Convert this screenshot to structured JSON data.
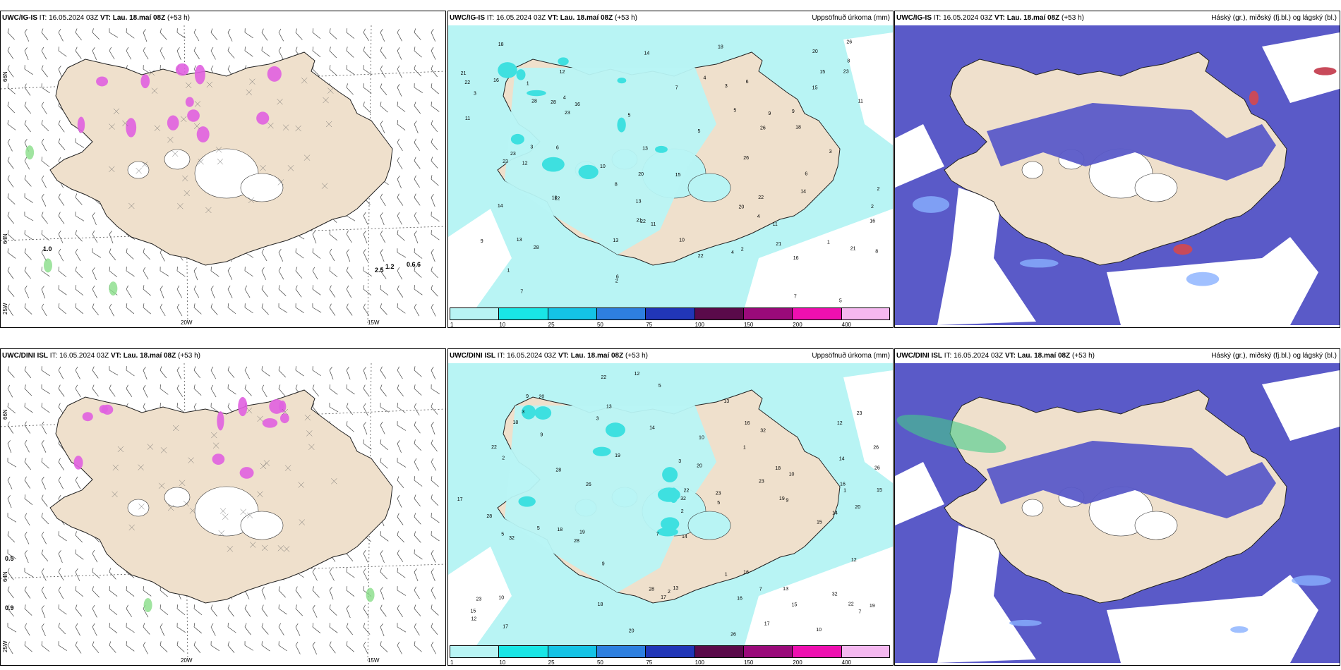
{
  "panels": [
    {
      "id": "p1",
      "model": "UWC/IG-IS",
      "it_label": "IT:",
      "it": "16.05.2024 03Z",
      "vt_label": "VT:",
      "vt": "Lau. 18.maí 08Z",
      "lead": "(+53 h)",
      "right_title": "",
      "kind": "wind"
    },
    {
      "id": "p2",
      "model": "UWC/IG-IS",
      "it_label": "IT:",
      "it": "16.05.2024 03Z",
      "vt_label": "VT:",
      "vt": "Lau. 18.maí 08Z",
      "lead": "(+53 h)",
      "right_title": "Uppsöfnuð úrkoma (mm)",
      "kind": "precip"
    },
    {
      "id": "p3",
      "model": "UWC/IG-IS",
      "it_label": "IT:",
      "it": "16.05.2024 03Z",
      "vt_label": "VT:",
      "vt": "Lau. 18.maí 08Z",
      "lead": "(+53 h)",
      "right_title": "Háský (gr.), miðský (fj.bl.) og lágský (bl.)",
      "kind": "cloud"
    },
    {
      "id": "p4",
      "model": "UWC/DINI ISL",
      "it_label": "IT:",
      "it": "16.05.2024 03Z",
      "vt_label": "VT:",
      "vt": "Lau. 18.maí 08Z",
      "lead": "(+53 h)",
      "right_title": "",
      "kind": "wind"
    },
    {
      "id": "p5",
      "model": "UWC/DINI ISL",
      "it_label": "IT:",
      "it": "16.05.2024 03Z",
      "vt_label": "VT:",
      "vt": "Lau. 18.maí 08Z",
      "lead": "(+53 h)",
      "right_title": "Uppsöfnuð úrkoma (mm)",
      "kind": "precip"
    },
    {
      "id": "p6",
      "model": "UWC/DINI ISL",
      "it_label": "IT:",
      "it": "16.05.2024 03Z",
      "vt_label": "VT:",
      "vt": "Lau. 18.maí 08Z",
      "lead": "(+53 h)",
      "right_title": "Háský (gr.), miðský (fj.bl.) og lágský (bl.)",
      "kind": "cloud"
    }
  ],
  "axis_labels": {
    "lon_20w": "20W",
    "lon_15w": "15W",
    "lon_25w": "25W",
    "lat_66n": "66N",
    "lat_64n": "64N"
  },
  "colorbar": {
    "ticks": [
      "1",
      "10",
      "25",
      "50",
      "75",
      "100",
      "150",
      "200",
      "400"
    ],
    "colors": [
      "#b8f4f4",
      "#19e6e6",
      "#14c3e6",
      "#2e7fe0",
      "#2136b8",
      "#5a0a4a",
      "#9a0a7a",
      "#ee10b0",
      "#f5b8f0"
    ]
  },
  "colors": {
    "land": "#efe0cc",
    "precip_light": "#b8f4f4",
    "precip_mid": "#3ee0e0",
    "cloud_low": "#5a5ac8",
    "cloud_mid": "#88b0ff",
    "cloud_high": "#c84a5a",
    "snow": "#e060e0",
    "light_precip_green": "#88dd88"
  },
  "wind_values_top": [
    "1.0",
    "1.2",
    "0.6.6",
    "2.5"
  ],
  "wind_values_bottom": [
    "0.5",
    "0.9"
  ],
  "precip_values_top": [
    "5",
    "3",
    "2",
    "4",
    "6",
    "11",
    "13",
    "16",
    "22",
    "23",
    "21",
    "10",
    "12",
    "14",
    "18",
    "20",
    "26",
    "28",
    "15",
    "9",
    "8",
    "7",
    "1"
  ],
  "precip_values_bottom": [
    "5",
    "32",
    "26",
    "19",
    "20",
    "17",
    "13",
    "16",
    "18",
    "23",
    "28",
    "15",
    "22",
    "14",
    "12",
    "10",
    "9",
    "7",
    "3",
    "2",
    "1"
  ]
}
